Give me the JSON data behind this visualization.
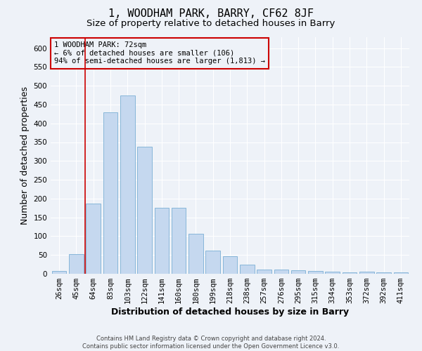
{
  "title": "1, WOODHAM PARK, BARRY, CF62 8JF",
  "subtitle": "Size of property relative to detached houses in Barry",
  "xlabel": "Distribution of detached houses by size in Barry",
  "ylabel": "Number of detached properties",
  "footer_line1": "Contains HM Land Registry data © Crown copyright and database right 2024.",
  "footer_line2": "Contains public sector information licensed under the Open Government Licence v3.0.",
  "categories": [
    "26sqm",
    "45sqm",
    "64sqm",
    "83sqm",
    "103sqm",
    "122sqm",
    "141sqm",
    "160sqm",
    "180sqm",
    "199sqm",
    "218sqm",
    "238sqm",
    "257sqm",
    "276sqm",
    "295sqm",
    "315sqm",
    "334sqm",
    "353sqm",
    "372sqm",
    "392sqm",
    "411sqm"
  ],
  "values": [
    7,
    53,
    187,
    430,
    475,
    337,
    176,
    176,
    107,
    62,
    46,
    25,
    12,
    11,
    9,
    8,
    5,
    4,
    5,
    4,
    4
  ],
  "bar_color": "#c5d8ef",
  "bar_edge_color": "#7aafd4",
  "annotation_line1": "1 WOODHAM PARK: 72sqm",
  "annotation_line2": "← 6% of detached houses are smaller (106)",
  "annotation_line3": "94% of semi-detached houses are larger (1,813) →",
  "vline_x": 1.5,
  "vline_color": "#cc0000",
  "box_color": "#cc0000",
  "ylim": [
    0,
    630
  ],
  "yticks": [
    0,
    50,
    100,
    150,
    200,
    250,
    300,
    350,
    400,
    450,
    500,
    550,
    600
  ],
  "background_color": "#eef2f8",
  "grid_color": "#ffffff",
  "title_fontsize": 11,
  "subtitle_fontsize": 9.5,
  "xlabel_fontsize": 9,
  "ylabel_fontsize": 9,
  "tick_fontsize": 7.5,
  "annotation_fontsize": 7.5,
  "footer_fontsize": 6
}
